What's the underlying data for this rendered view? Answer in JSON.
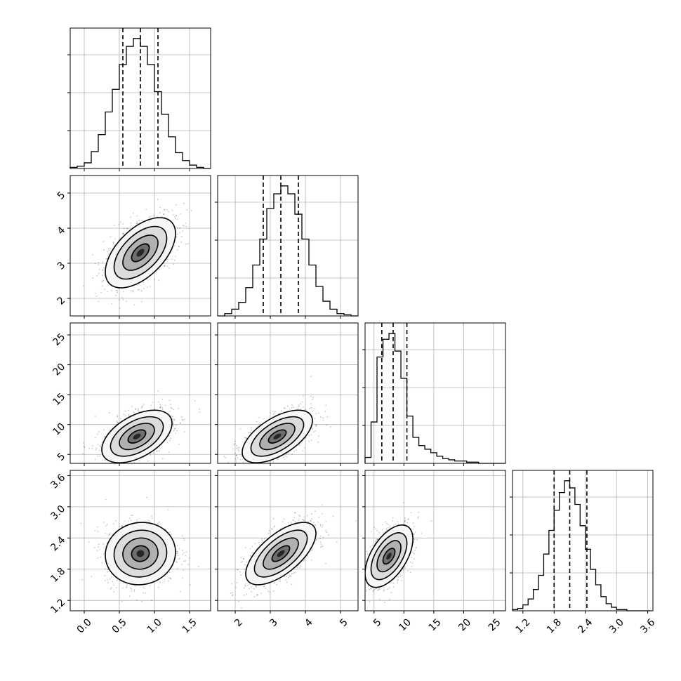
{
  "chart_data": {
    "type": "corner",
    "parameters": [
      {
        "id": "p0",
        "range": [
          -0.2,
          1.8
        ],
        "xticks": [
          "0.0",
          "0.5",
          "1.0",
          "1.5"
        ],
        "xtick_values": [
          0.0,
          0.5,
          1.0,
          1.5
        ],
        "quantiles": [
          0.55,
          0.8,
          1.05
        ],
        "mean": 0.8,
        "sd": 0.25
      },
      {
        "id": "p1",
        "range": [
          1.5,
          5.5
        ],
        "xticks": [
          "2",
          "3",
          "4",
          "5"
        ],
        "xtick_values": [
          2,
          3,
          4,
          5
        ],
        "quantiles": [
          2.8,
          3.3,
          3.8
        ],
        "mean": 3.3,
        "sd": 0.5
      },
      {
        "id": "p2",
        "range": [
          3.5,
          27
        ],
        "xticks": [
          "5",
          "10",
          "15",
          "20",
          "25"
        ],
        "xtick_values": [
          5,
          10,
          15,
          20,
          25
        ],
        "quantiles": [
          6.3,
          8.2,
          10.5
        ],
        "mean": 8.2,
        "sd": 2.2
      },
      {
        "id": "p3",
        "range": [
          1.0,
          3.7
        ],
        "xticks": [
          "1.2",
          "1.8",
          "2.4",
          "3.0",
          "3.6"
        ],
        "xtick_values": [
          1.2,
          1.8,
          2.4,
          3.0,
          3.6
        ],
        "quantiles": [
          1.8,
          2.1,
          2.43
        ],
        "mean": 2.1,
        "sd": 0.3
      }
    ],
    "histograms": [
      {
        "param": 0,
        "bins": [
          -0.15,
          -0.05,
          0.05,
          0.15,
          0.25,
          0.35,
          0.45,
          0.55,
          0.65,
          0.75,
          0.85,
          0.95,
          1.05,
          1.15,
          1.25,
          1.35,
          1.45,
          1.55,
          1.65,
          1.75
        ],
        "counts": [
          1,
          2,
          5,
          15,
          30,
          50,
          70,
          92,
          108,
          115,
          108,
          92,
          68,
          48,
          28,
          14,
          7,
          3,
          1,
          0
        ]
      },
      {
        "param": 1,
        "bins": [
          1.6,
          1.8,
          2.0,
          2.2,
          2.4,
          2.6,
          2.8,
          3.0,
          3.2,
          3.4,
          3.6,
          3.8,
          4.0,
          4.2,
          4.4,
          4.6,
          4.8,
          5.0,
          5.2,
          5.4
        ],
        "counts": [
          0,
          2,
          6,
          12,
          25,
          45,
          68,
          95,
          108,
          115,
          108,
          90,
          68,
          45,
          26,
          13,
          6,
          2,
          1,
          0
        ]
      },
      {
        "param": 2,
        "bins": [
          4,
          5,
          6,
          7,
          8,
          9,
          10,
          11,
          12,
          13,
          14,
          15,
          16,
          17,
          18,
          19,
          20,
          21,
          22,
          23,
          24,
          25,
          26
        ],
        "counts": [
          5,
          35,
          90,
          105,
          110,
          95,
          72,
          40,
          22,
          15,
          12,
          9,
          6,
          4,
          3,
          2,
          2,
          1,
          1,
          0,
          0,
          0,
          0
        ]
      },
      {
        "param": 3,
        "bins": [
          1.05,
          1.15,
          1.25,
          1.35,
          1.45,
          1.55,
          1.65,
          1.75,
          1.85,
          1.95,
          2.05,
          2.15,
          2.25,
          2.35,
          2.45,
          2.55,
          2.65,
          2.75,
          2.85,
          2.95,
          3.05,
          3.15,
          3.25,
          3.35
        ],
        "counts": [
          1,
          2,
          5,
          10,
          18,
          30,
          48,
          68,
          85,
          100,
          110,
          104,
          90,
          72,
          52,
          35,
          22,
          12,
          6,
          3,
          1,
          1,
          0,
          0
        ]
      }
    ],
    "pairs": [
      {
        "row": 1,
        "col": 0,
        "mean": [
          0.8,
          3.3
        ],
        "sd": [
          0.25,
          0.5
        ],
        "rho": 0.55
      },
      {
        "row": 2,
        "col": 0,
        "mean": [
          0.75,
          8.0
        ],
        "sd": [
          0.25,
          2.2
        ],
        "rho": 0.5
      },
      {
        "row": 2,
        "col": 1,
        "mean": [
          3.2,
          8.0
        ],
        "sd": [
          0.5,
          2.2
        ],
        "rho": 0.6
      },
      {
        "row": 3,
        "col": 0,
        "mean": [
          0.8,
          2.1
        ],
        "sd": [
          0.25,
          0.3
        ],
        "rho": 0.05
      },
      {
        "row": 3,
        "col": 1,
        "mean": [
          3.3,
          2.1
        ],
        "sd": [
          0.5,
          0.3
        ],
        "rho": 0.65
      },
      {
        "row": 3,
        "col": 2,
        "mean": [
          7.5,
          2.05
        ],
        "sd": [
          2.0,
          0.3
        ],
        "rho": 0.55
      }
    ],
    "yaxis_ticks": [
      null,
      {
        "labels": [
          "2",
          "3",
          "4",
          "5"
        ],
        "values": [
          2,
          3,
          4,
          5
        ]
      },
      {
        "labels": [
          "5",
          "10",
          "15",
          "20",
          "25"
        ],
        "values": [
          5,
          10,
          15,
          20,
          25
        ]
      },
      {
        "labels": [
          "1.2",
          "1.8",
          "2.4",
          "3.0",
          "3.6"
        ],
        "values": [
          1.2,
          1.8,
          2.4,
          3.0,
          3.6
        ]
      }
    ],
    "contour_levels_sigma": [
      0.5,
      1.0,
      1.5,
      2.0
    ],
    "grid": true,
    "colors": {
      "line": "#000000",
      "grid": "#b0b0b0",
      "points": "#000000",
      "frame": "#000000"
    }
  }
}
